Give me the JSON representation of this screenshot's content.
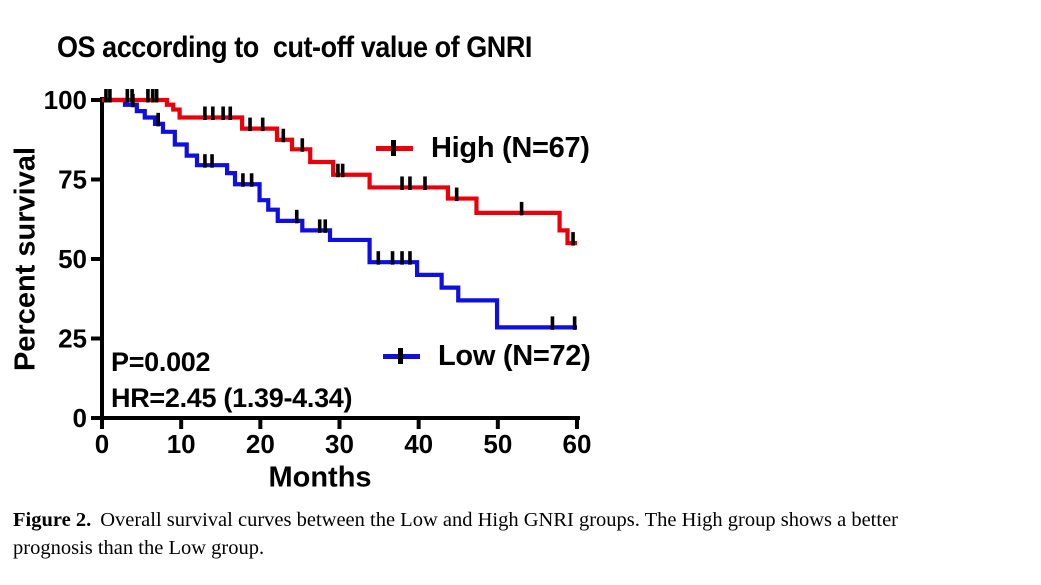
{
  "figure": {
    "title": "OS according to  cut-off value of GNRI",
    "p_value": "P=0.002",
    "hazard_ratio": "HR=2.45 (1.39-4.34)",
    "legend": {
      "high_label": "High (N=67)",
      "low_label": "Low (N=72)",
      "censor_icon": "censor-tick"
    },
    "caption": {
      "label": "Figure 2.",
      "line1": "Overall survival curves between the Low and High GNRI groups. The High group shows a better",
      "line2": "prognosis than the Low group."
    }
  },
  "chart_data": {
    "type": "line",
    "subtype": "kaplan-meier-step",
    "title": "OS according to  cut-off value of GNRI",
    "xlabel": "Months",
    "ylabel": "Percent survival",
    "xlim": [
      0,
      60
    ],
    "ylim": [
      0,
      100
    ],
    "xticks": [
      0,
      10,
      20,
      30,
      40,
      50,
      60
    ],
    "yticks": [
      100,
      75,
      50,
      25,
      0
    ],
    "grid": false,
    "legend_position": "inside-right",
    "annotations": [
      "P=0.002",
      "HR=2.45 (1.39-4.34)"
    ],
    "colors": {
      "high": "#e8000b",
      "low": "#0f0fe0",
      "axis": "#000000",
      "censor": "#000000"
    },
    "series": [
      {
        "name": "High (N=67)",
        "n": 67,
        "color": "#e8000b",
        "end_month": 60,
        "steps": [
          [
            0,
            100
          ],
          [
            8.2,
            98.5
          ],
          [
            9,
            97
          ],
          [
            9.8,
            94.5
          ],
          [
            17.7,
            91
          ],
          [
            22.1,
            87.5
          ],
          [
            24,
            84.5
          ],
          [
            26.3,
            80.5
          ],
          [
            29.2,
            76.5
          ],
          [
            33.8,
            72.5
          ],
          [
            43.7,
            69
          ],
          [
            47.3,
            64.5
          ],
          [
            57.8,
            59
          ],
          [
            58.8,
            55
          ]
        ],
        "censor_marks": [
          [
            0.5,
            100
          ],
          [
            1.0,
            100
          ],
          [
            3.2,
            100
          ],
          [
            3.8,
            100
          ],
          [
            5.8,
            100
          ],
          [
            6.4,
            100
          ],
          [
            6.9,
            100
          ],
          [
            13,
            94.5
          ],
          [
            14,
            94.5
          ],
          [
            15.3,
            94.5
          ],
          [
            16.2,
            94.5
          ],
          [
            18.7,
            91
          ],
          [
            20.3,
            91
          ],
          [
            22.9,
            87.5
          ],
          [
            25.3,
            84.5
          ],
          [
            29.8,
            76.5
          ],
          [
            30.4,
            76.5
          ],
          [
            37.9,
            72.5
          ],
          [
            38.9,
            72.5
          ],
          [
            40.8,
            72.5
          ],
          [
            44.8,
            69
          ],
          [
            53,
            64.5
          ],
          [
            59.5,
            55
          ]
        ]
      },
      {
        "name": "Low (N=72)",
        "n": 72,
        "color": "#0f0fe0",
        "end_month": 60,
        "steps": [
          [
            0,
            100
          ],
          [
            2.9,
            98.5
          ],
          [
            4.4,
            96.5
          ],
          [
            5.4,
            94.5
          ],
          [
            6.7,
            92.5
          ],
          [
            7.7,
            90
          ],
          [
            9.2,
            86
          ],
          [
            10.7,
            82.5
          ],
          [
            12,
            79.5
          ],
          [
            15.8,
            77
          ],
          [
            16.8,
            73.5
          ],
          [
            19.9,
            68.5
          ],
          [
            21,
            65.5
          ],
          [
            22.2,
            62
          ],
          [
            25.3,
            59
          ],
          [
            28.8,
            56
          ],
          [
            33.8,
            49
          ],
          [
            39.8,
            45
          ],
          [
            42.9,
            41
          ],
          [
            45,
            37
          ],
          [
            49.9,
            28.5
          ]
        ],
        "censor_marks": [
          [
            3.9,
            98.5
          ],
          [
            7.1,
            92.5
          ],
          [
            13,
            79.5
          ],
          [
            13.9,
            79.5
          ],
          [
            17.8,
            73.5
          ],
          [
            18.9,
            73.5
          ],
          [
            24.6,
            62
          ],
          [
            27.5,
            59
          ],
          [
            28.2,
            59
          ],
          [
            34.9,
            49
          ],
          [
            36.7,
            49
          ],
          [
            37.9,
            49
          ],
          [
            38.9,
            49
          ],
          [
            56.9,
            28.5
          ],
          [
            59.7,
            28.5
          ]
        ]
      }
    ]
  }
}
